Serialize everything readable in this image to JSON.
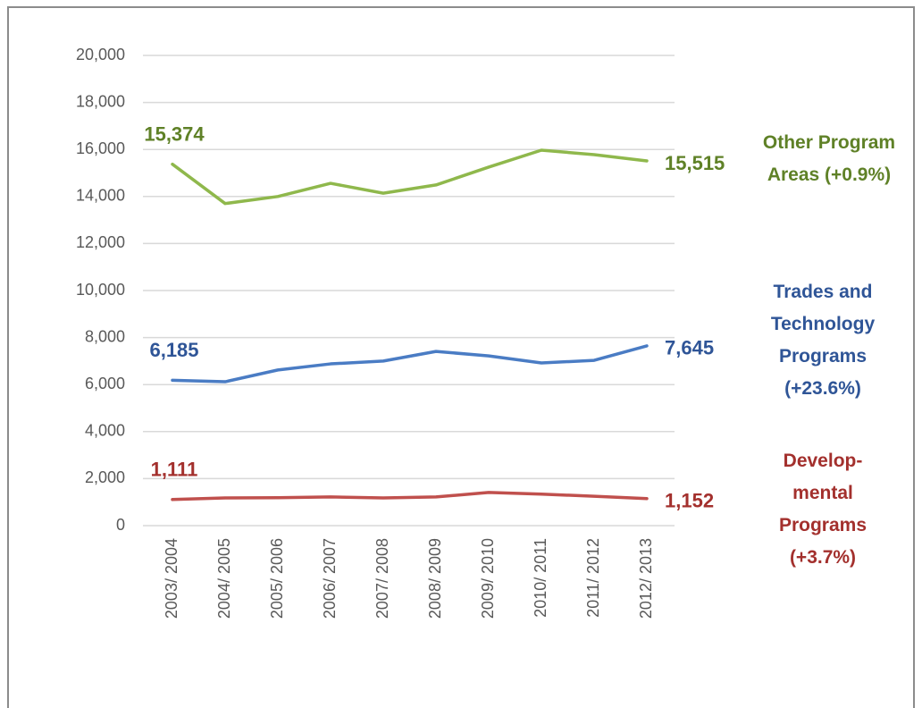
{
  "chart_data": {
    "type": "line",
    "categories": [
      "2003/ 2004",
      "2004/ 2005",
      "2005/ 2006",
      "2006/ 2007",
      "2007/ 2008",
      "2008/ 2009",
      "2009/ 2010",
      "2010/ 2011",
      "2011/ 2012",
      "2012/ 2013"
    ],
    "series": [
      {
        "name": "Other Program\nAreas (+0.9%)",
        "color": "#8fb84c",
        "label_color": "#5f8127",
        "values": [
          15374,
          13700,
          14000,
          14560,
          14140,
          14490,
          15250,
          15970,
          15780,
          15515
        ],
        "value_labels": [
          "15,374",
          null,
          null,
          null,
          null,
          null,
          null,
          null,
          null,
          "15,515"
        ]
      },
      {
        "name": "Trades and\nTechnology\nPrograms\n(+23.6%)",
        "color": "#4a7cc4",
        "label_color": "#2f5597",
        "values": [
          6185,
          6120,
          6620,
          6880,
          7000,
          7410,
          7220,
          6920,
          7030,
          7645
        ],
        "value_labels": [
          "6,185",
          null,
          null,
          null,
          null,
          null,
          null,
          null,
          null,
          "7,645"
        ]
      },
      {
        "name": "Develop-\nmental\nPrograms\n(+3.7%)",
        "color": "#c0504d",
        "label_color": "#a3302d",
        "values": [
          1111,
          1180,
          1190,
          1220,
          1180,
          1220,
          1410,
          1340,
          1250,
          1152
        ],
        "value_labels": [
          "1,111",
          null,
          null,
          null,
          null,
          null,
          null,
          null,
          null,
          "1,152"
        ]
      }
    ],
    "ylim": [
      0,
      20000
    ],
    "yticks": [
      0,
      {
        "value": 2000,
        "label": "2,000"
      },
      {
        "value": 4000,
        "label": "4,000"
      },
      {
        "value": 6000,
        "label": "6,000"
      },
      {
        "value": 8000,
        "label": "8,000"
      },
      {
        "value": 10000,
        "label": "10,000"
      },
      {
        "value": 12000,
        "label": "12,000"
      },
      {
        "value": 14000,
        "label": "14,000"
      },
      {
        "value": 16000,
        "label": "16,000"
      },
      {
        "value": 18000,
        "label": "18,000"
      },
      {
        "value": 20000,
        "label": "20,000"
      }
    ],
    "grid": true
  }
}
